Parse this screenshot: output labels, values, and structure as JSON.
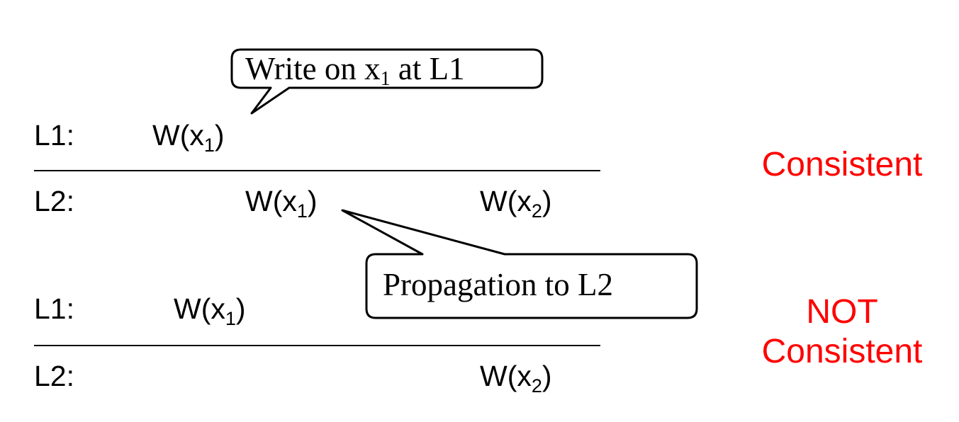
{
  "callouts": {
    "write": {
      "pre": "Write on x",
      "sub": "1",
      "post": " at L1"
    },
    "propagation": {
      "text": "Propagation to L2"
    }
  },
  "scenarios": [
    {
      "verdict_lines": [
        "Consistent"
      ],
      "rows": [
        {
          "label": "L1:",
          "events": [
            {
              "base": "W(x",
              "sub": "1",
              "close": ")"
            }
          ]
        },
        {
          "label": "L2:",
          "events": [
            {
              "base": "W(x",
              "sub": "1",
              "close": ")"
            },
            {
              "base": "W(x",
              "sub": "2",
              "close": ")"
            }
          ]
        }
      ]
    },
    {
      "verdict_lines": [
        "NOT",
        "Consistent"
      ],
      "rows": [
        {
          "label": "L1:",
          "events": [
            {
              "base": "W(x",
              "sub": "1",
              "close": ")"
            }
          ]
        },
        {
          "label": "L2:",
          "events": [
            {
              "base": "W(x",
              "sub": "2",
              "close": ")"
            }
          ]
        }
      ]
    }
  ],
  "colors": {
    "verdict": "#ff0000",
    "text": "#000000",
    "line": "#000000"
  }
}
